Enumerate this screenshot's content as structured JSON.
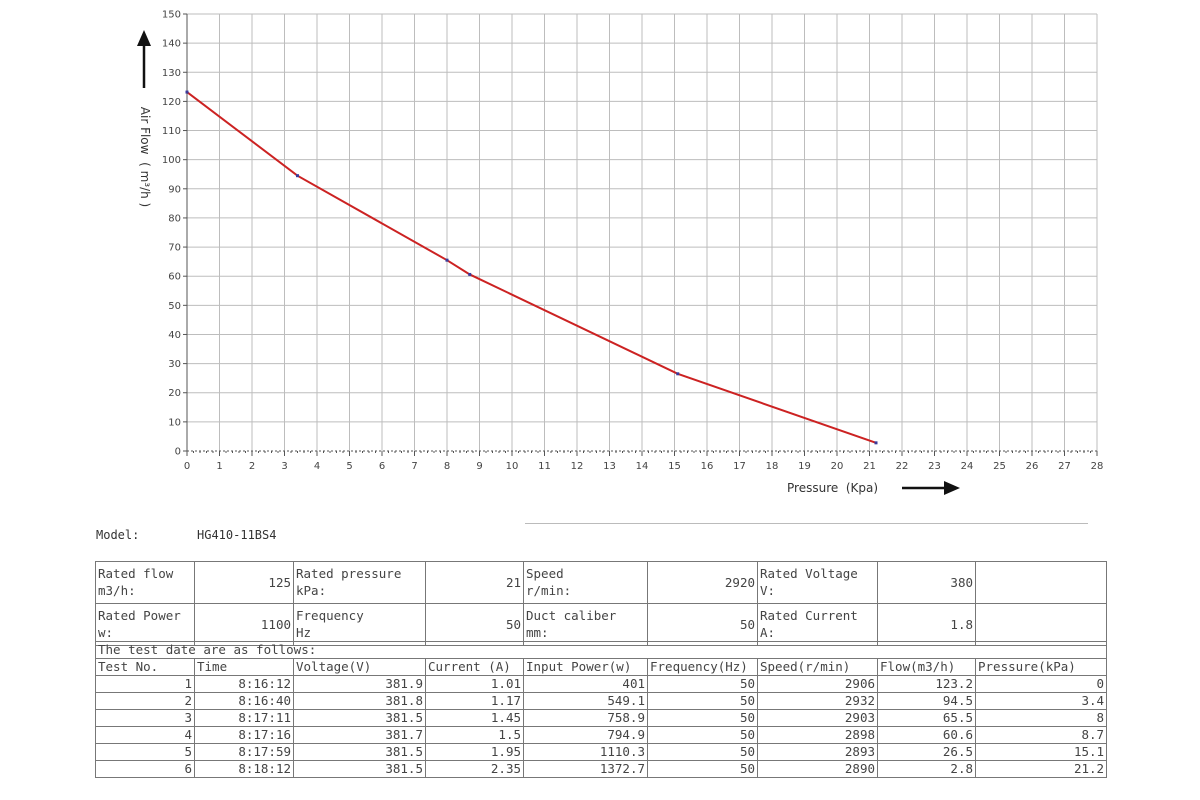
{
  "chart_data": {
    "type": "line",
    "xlabel": "Pressure  (Kpa)",
    "ylabel": "Air Flow  ( m³/h )",
    "xlim": [
      0,
      28
    ],
    "ylim": [
      0,
      150
    ],
    "x_ticks": [
      0,
      1,
      2,
      3,
      4,
      5,
      6,
      7,
      8,
      9,
      10,
      11,
      12,
      13,
      14,
      15,
      16,
      17,
      18,
      19,
      20,
      21,
      22,
      23,
      24,
      25,
      26,
      27,
      28
    ],
    "y_ticks": [
      0,
      10,
      20,
      30,
      40,
      50,
      60,
      70,
      80,
      90,
      100,
      110,
      120,
      130,
      140,
      150
    ],
    "grid": true,
    "series": [
      {
        "x": [
          0,
          3.4,
          8,
          8.7,
          15.1,
          21.2
        ],
        "y": [
          123.2,
          94.5,
          65.5,
          60.6,
          26.5,
          2.8
        ]
      }
    ],
    "colors": {
      "line": "#cc2222",
      "marker": "#3a3a9a",
      "grid": "#bdbdbd",
      "axis": "#555555"
    }
  },
  "model": {
    "label": "Model:",
    "value": "HG410-11BS4"
  },
  "specs": {
    "rated_flow_label": "Rated flow",
    "rated_flow_unit": "m3/h:",
    "rated_flow": "125",
    "rated_pressure_label": "Rated pressure",
    "rated_pressure_unit": "kPa:",
    "rated_pressure": "21",
    "speed_label": "Speed",
    "speed_unit": "r/min:",
    "speed": "2920",
    "rated_voltage_label": "Rated Voltage",
    "rated_voltage_unit": "V:",
    "rated_voltage": "380",
    "rated_power_label": "Rated Power",
    "rated_power_unit": "w:",
    "rated_power": "1100",
    "frequency_label": "Frequency",
    "frequency_unit": "Hz",
    "frequency": "50",
    "duct_label": "Duct caliber",
    "duct_unit": "mm:",
    "duct": "50",
    "rated_current_label": "Rated Current",
    "rated_current_unit": "A:",
    "rated_current": "1.8"
  },
  "test": {
    "intro": "The test date are as follows:",
    "headers": [
      "Test No.",
      "Time",
      "Voltage(V)",
      "Current (A)",
      "Input Power(w)",
      "Frequency(Hz)",
      "Speed(r/min)",
      "Flow(m3/h)",
      "Pressure(kPa)"
    ],
    "rows": [
      [
        "1",
        "8:16:12",
        "381.9",
        "1.01",
        "401",
        "50",
        "2906",
        "123.2",
        "0"
      ],
      [
        "2",
        "8:16:40",
        "381.8",
        "1.17",
        "549.1",
        "50",
        "2932",
        "94.5",
        "3.4"
      ],
      [
        "3",
        "8:17:11",
        "381.5",
        "1.45",
        "758.9",
        "50",
        "2903",
        "65.5",
        "8"
      ],
      [
        "4",
        "8:17:16",
        "381.7",
        "1.5",
        "794.9",
        "50",
        "2898",
        "60.6",
        "8.7"
      ],
      [
        "5",
        "8:17:59",
        "381.5",
        "1.95",
        "1110.3",
        "50",
        "2893",
        "26.5",
        "15.1"
      ],
      [
        "6",
        "8:18:12",
        "381.5",
        "2.35",
        "1372.7",
        "50",
        "2890",
        "2.8",
        "21.2"
      ]
    ]
  }
}
